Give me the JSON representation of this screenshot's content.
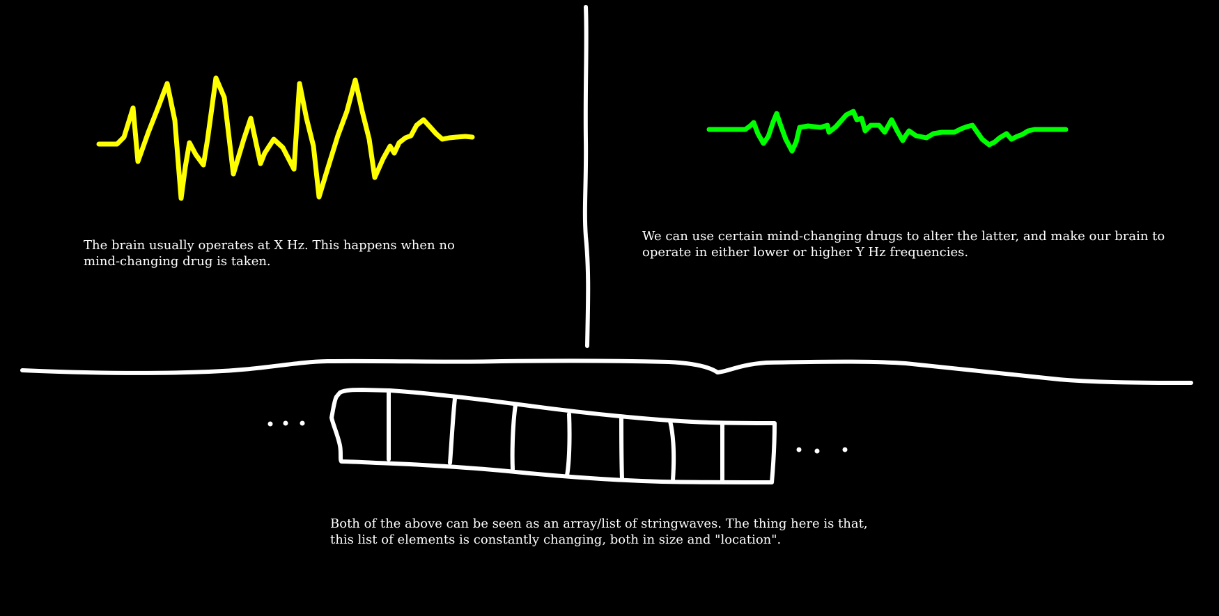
{
  "colors": {
    "background": "#000000",
    "normal_wave": "#ffff00",
    "altered_wave": "#00ff00",
    "lines": "#ffffff",
    "text": "#ffffff"
  },
  "captions": {
    "normal": {
      "line1": "The brain usually operates at X Hz. This happens when no",
      "line2": "mind-changing drug is taken."
    },
    "drugs": {
      "line1": "We can use certain mind-changing drugs to alter the latter, and make our brain to",
      "line2": "operate in either lower or higher Y Hz frequencies."
    },
    "array": {
      "line1": "Both of the above can be seen as an array/list of stringwaves. The thing here is that,",
      "line2": "this list of elements is constantly changing, both in size and \"location\"."
    }
  },
  "array_diagram": {
    "cell_count": 8
  }
}
